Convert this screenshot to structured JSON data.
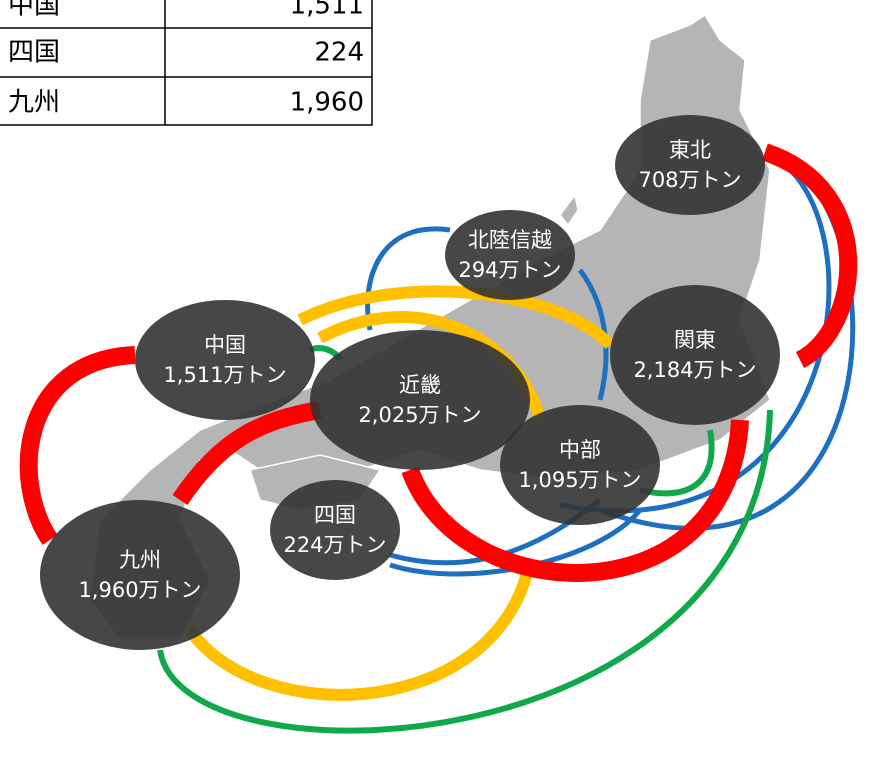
{
  "table": {
    "rows": [
      [
        "中国",
        "1,511"
      ],
      [
        "四国",
        "224"
      ],
      [
        "九州",
        "1,960"
      ]
    ]
  },
  "nodes": [
    {
      "name": "東北",
      "amount": "708万トン"
    },
    {
      "name": "北陸信越",
      "amount": "294万トン"
    },
    {
      "name": "中国",
      "amount": "1,511万トン"
    },
    {
      "name": "近畿",
      "amount": "2,025万トン"
    },
    {
      "name": "関東",
      "amount": "2,184万トン"
    },
    {
      "name": "中部",
      "amount": "1,095万トン"
    },
    {
      "name": "四国",
      "amount": "224万トン"
    },
    {
      "name": "九州",
      "amount": "1,960万トン"
    }
  ]
}
